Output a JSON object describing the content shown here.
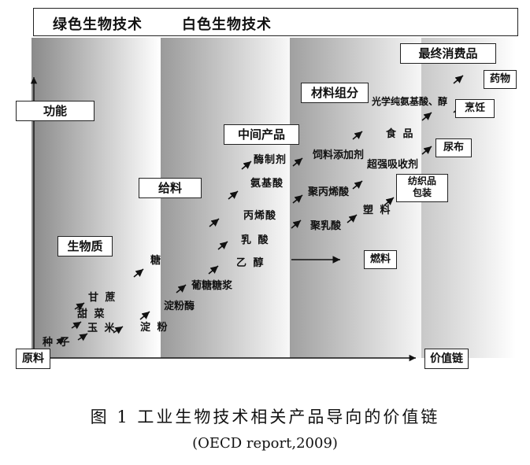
{
  "header": {
    "green_biotech": "绿色生物技术",
    "white_biotech": "白色生物技术"
  },
  "stages": {
    "final_products": "最终消费品",
    "material_components": "材料组分",
    "intermediate_products": "中间产品",
    "feedstock": "给料",
    "biomass": "生物质",
    "function": "功能",
    "raw_materials": "原料",
    "value_chain": "价值链"
  },
  "raw_items": {
    "seed": "种 子",
    "corn": "玉 米",
    "sugar_beet": "甜 菜",
    "sugarcane": "甘 蔗"
  },
  "feed_items": {
    "sugar": "糖",
    "starch": "淀 粉",
    "amylase": "淀粉酶",
    "glucose_syrup": "葡糖糖浆"
  },
  "intermediate_items": {
    "enzyme": "酶制剂",
    "amino_acid": "氨基酸",
    "acrylic_acid": "丙烯酸",
    "lactic_acid": "乳 酸",
    "ethanol": "乙 醇"
  },
  "material_items": {
    "feed_additive": "饲料添加剂",
    "polyacrylate": "聚丙烯酸",
    "polylactic": "聚乳酸",
    "fuel": "燃料"
  },
  "final_items": {
    "chiral": "光学纯氨基酸、醇",
    "drug": "药物",
    "food": "食 品",
    "cooking": "烹饪",
    "super_absorbent": "超强吸收剂",
    "diaper": "尿布",
    "plastic": "塑 料",
    "textile": "纺织品",
    "packaging": "包装"
  },
  "caption": {
    "title": "图 1  工业生物技术相关产品导向的价值链",
    "source": "(OECD report,2009)"
  }
}
